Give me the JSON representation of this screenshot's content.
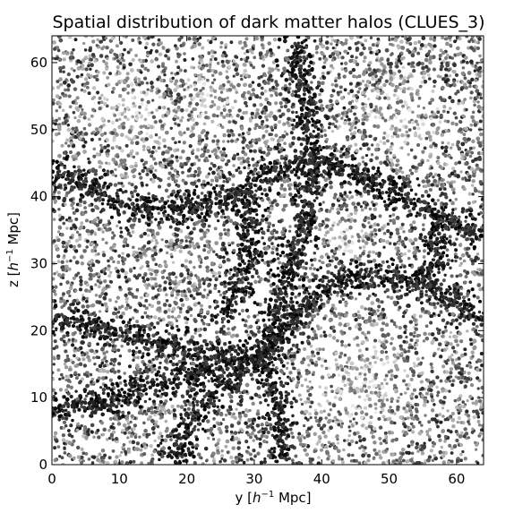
{
  "chart_data": {
    "type": "scatter",
    "title": "Spatial distribution of dark matter halos (CLUES_3)",
    "xlabel": {
      "prefix": "y [",
      "unit_base": "h",
      "unit_exp": "−1",
      "suffix": " Mpc]"
    },
    "ylabel": {
      "prefix": "z [",
      "unit_base": "h",
      "unit_exp": "−1",
      "suffix": " Mpc]"
    },
    "xlim": [
      0,
      64
    ],
    "ylim": [
      0,
      64
    ],
    "xticks": [
      "0",
      "10",
      "20",
      "30",
      "40",
      "50",
      "60"
    ],
    "yticks": [
      "0",
      "10",
      "20",
      "30",
      "40",
      "50",
      "60"
    ],
    "grid": false,
    "marker_color_scale": [
      "#000000",
      "#e8e8e8"
    ],
    "filaments": [
      {
        "points": [
          [
            36,
            64
          ],
          [
            37.5,
            55
          ],
          [
            38.5,
            46
          ],
          [
            37.5,
            36
          ],
          [
            35,
            28
          ],
          [
            33,
            21
          ],
          [
            31.5,
            16
          ],
          [
            33.5,
            8
          ],
          [
            34.5,
            0
          ]
        ]
      },
      {
        "points": [
          [
            0,
            22
          ],
          [
            9,
            20
          ],
          [
            18,
            17.5
          ],
          [
            27,
            16
          ],
          [
            31.5,
            16
          ],
          [
            36,
            22
          ],
          [
            41,
            27
          ],
          [
            47,
            28
          ],
          [
            55,
            27
          ],
          [
            64,
            22
          ]
        ]
      },
      {
        "points": [
          [
            38.5,
            46
          ],
          [
            45,
            43
          ],
          [
            52,
            40
          ],
          [
            58,
            37
          ],
          [
            64,
            34
          ]
        ]
      },
      {
        "points": [
          [
            0,
            8
          ],
          [
            8,
            9.5
          ],
          [
            16,
            12
          ],
          [
            24,
            14.5
          ],
          [
            31.5,
            16
          ]
        ]
      },
      {
        "points": [
          [
            12,
            38
          ],
          [
            20,
            38.5
          ],
          [
            28,
            40
          ],
          [
            33,
            44
          ],
          [
            38.5,
            46
          ]
        ]
      },
      {
        "points": [
          [
            58,
            37
          ],
          [
            57,
            30
          ],
          [
            55,
            27
          ]
        ]
      },
      {
        "points": [
          [
            31.5,
            16
          ],
          [
            24,
            11
          ],
          [
            20,
            5
          ],
          [
            18,
            0
          ]
        ]
      },
      {
        "points": [
          [
            25,
            22
          ],
          [
            28,
            26
          ],
          [
            29.5,
            32
          ],
          [
            29,
            40
          ]
        ]
      },
      {
        "points": [
          [
            0,
            44
          ],
          [
            6,
            41
          ],
          [
            12,
            38
          ]
        ]
      }
    ],
    "voids": [
      {
        "center": [
          46,
          12
        ],
        "radius": 10
      },
      {
        "center": [
          52,
          52
        ],
        "radius": 8
      },
      {
        "center": [
          12,
          52
        ],
        "radius": 7
      },
      {
        "center": [
          24,
          55
        ],
        "radius": 6
      },
      {
        "center": [
          44,
          34
        ],
        "radius": 4
      }
    ]
  }
}
